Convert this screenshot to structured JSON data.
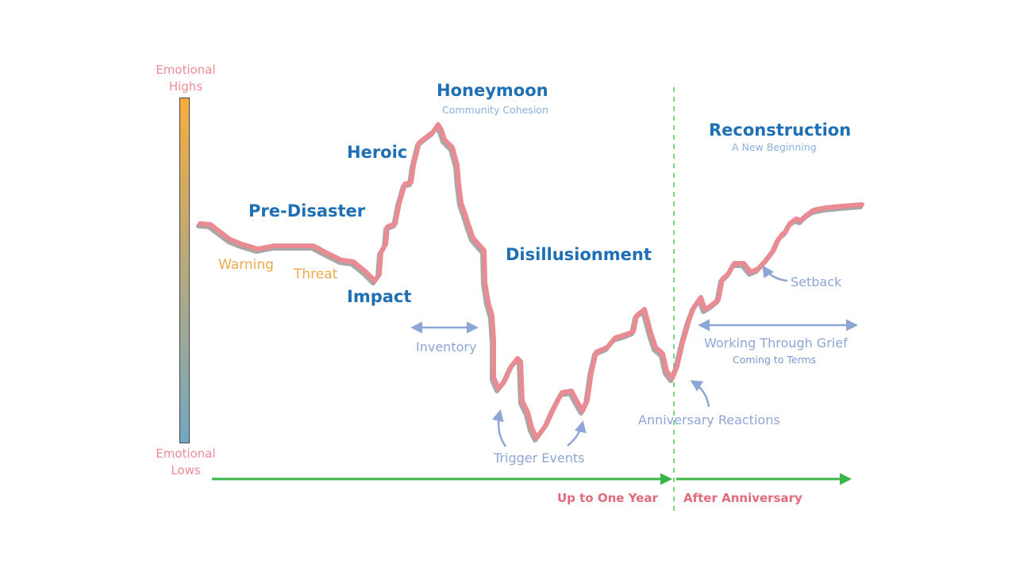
{
  "scale": {
    "high_label_line1": "Emotional",
    "high_label_line2": "Highs",
    "low_label_line1": "Emotional",
    "low_label_line2": "Lows",
    "gradient_top": "#f7ac3c",
    "gradient_bottom": "#73a8c2"
  },
  "phases": {
    "pre_disaster": "Pre-Disaster",
    "impact": "Impact",
    "heroic": "Heroic",
    "honeymoon": "Honeymoon",
    "honeymoon_sub": "Community Cohesion",
    "disillusionment": "Disillusionment",
    "reconstruction": "Reconstruction",
    "reconstruction_sub": "A New Beginning"
  },
  "annotations": {
    "warning": "Warning",
    "threat": "Threat",
    "inventory": "Inventory",
    "trigger_events": "Trigger Events",
    "anniversary_reactions": "Anniversary Reactions",
    "setback": "Setback",
    "working_through_grief": "Working Through Grief",
    "coming_to_terms": "Coming to Terms"
  },
  "timeline": {
    "up_to_one_year": "Up to One Year",
    "after_anniversary": "After Anniversary"
  },
  "colors": {
    "curve": "#ea8a93",
    "curve_shadow": "#8a8a8a",
    "phase_text": "#1f6fb5",
    "annotation": "#8ea6d6",
    "timeline_arrow": "#3ab54a",
    "divider": "#7ed37e"
  }
}
